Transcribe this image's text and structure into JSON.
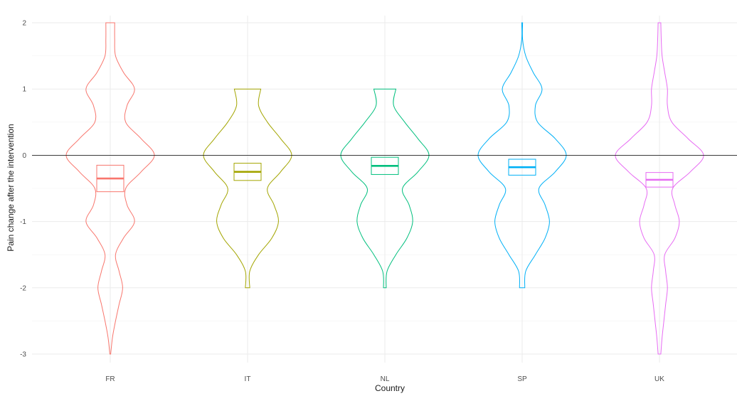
{
  "chart_data": {
    "type": "violin",
    "title": "",
    "xlabel": "Country",
    "ylabel": "Pain change after the intervention",
    "ylim": [
      -3,
      2
    ],
    "yticks": [
      "-3",
      "-2",
      "-1",
      "0",
      "1",
      "2"
    ],
    "grid": true,
    "legend": "none",
    "reference_line_y": 0,
    "categories": [
      "FR",
      "IT",
      "NL",
      "SP",
      "UK"
    ],
    "series": [
      {
        "category": "FR",
        "color": "#F8766D",
        "min": -3,
        "max": 2,
        "mean": -0.35,
        "ci_low": -0.55,
        "ci_high": -0.15,
        "density": [
          [
            -3,
            0.01
          ],
          [
            -2.75,
            0.05
          ],
          [
            -2.5,
            0.12
          ],
          [
            -2.25,
            0.2
          ],
          [
            -2,
            0.28
          ],
          [
            -1.75,
            0.2
          ],
          [
            -1.5,
            0.12
          ],
          [
            -1.25,
            0.3
          ],
          [
            -1,
            0.55
          ],
          [
            -0.75,
            0.38
          ],
          [
            -0.5,
            0.35
          ],
          [
            -0.25,
            0.7
          ],
          [
            0,
            1.0
          ],
          [
            0.25,
            0.7
          ],
          [
            0.5,
            0.35
          ],
          [
            0.75,
            0.38
          ],
          [
            1,
            0.55
          ],
          [
            1.25,
            0.3
          ],
          [
            1.5,
            0.12
          ],
          [
            1.75,
            0.1
          ],
          [
            2,
            0.1
          ]
        ]
      },
      {
        "category": "IT",
        "color": "#A3A500",
        "min": -2,
        "max": 1,
        "mean": -0.25,
        "ci_low": -0.38,
        "ci_high": -0.12,
        "density": [
          [
            -2,
            0.05
          ],
          [
            -1.75,
            0.05
          ],
          [
            -1.5,
            0.25
          ],
          [
            -1.25,
            0.55
          ],
          [
            -1,
            0.7
          ],
          [
            -0.75,
            0.6
          ],
          [
            -0.5,
            0.45
          ],
          [
            -0.25,
            0.75
          ],
          [
            0,
            1.0
          ],
          [
            0.25,
            0.75
          ],
          [
            0.5,
            0.45
          ],
          [
            0.75,
            0.25
          ],
          [
            1,
            0.3
          ]
        ]
      },
      {
        "category": "NL",
        "color": "#00BF7D",
        "min": -2,
        "max": 1,
        "mean": -0.16,
        "ci_low": -0.29,
        "ci_high": -0.03,
        "density": [
          [
            -2,
            0.03
          ],
          [
            -1.75,
            0.05
          ],
          [
            -1.5,
            0.25
          ],
          [
            -1.25,
            0.5
          ],
          [
            -1,
            0.63
          ],
          [
            -0.75,
            0.55
          ],
          [
            -0.5,
            0.4
          ],
          [
            -0.25,
            0.75
          ],
          [
            0,
            1.0
          ],
          [
            0.25,
            0.75
          ],
          [
            0.5,
            0.45
          ],
          [
            0.75,
            0.2
          ],
          [
            1,
            0.25
          ]
        ]
      },
      {
        "category": "SP",
        "color": "#00B0F6",
        "min": -2,
        "max": 2,
        "mean": -0.18,
        "ci_low": -0.3,
        "ci_high": -0.06,
        "density": [
          [
            -2,
            0.06
          ],
          [
            -1.75,
            0.08
          ],
          [
            -1.5,
            0.3
          ],
          [
            -1.25,
            0.52
          ],
          [
            -1,
            0.62
          ],
          [
            -0.75,
            0.52
          ],
          [
            -0.5,
            0.38
          ],
          [
            -0.25,
            0.75
          ],
          [
            0,
            1.0
          ],
          [
            0.25,
            0.75
          ],
          [
            0.5,
            0.35
          ],
          [
            0.75,
            0.3
          ],
          [
            1,
            0.45
          ],
          [
            1.25,
            0.25
          ],
          [
            1.5,
            0.08
          ],
          [
            1.75,
            0.01
          ],
          [
            2,
            0.01
          ]
        ]
      },
      {
        "category": "UK",
        "color": "#E76BF3",
        "min": -3,
        "max": 2,
        "mean": -0.37,
        "ci_low": -0.48,
        "ci_high": -0.26,
        "density": [
          [
            -3,
            0.03
          ],
          [
            -2.75,
            0.06
          ],
          [
            -2.5,
            0.1
          ],
          [
            -2.25,
            0.14
          ],
          [
            -2,
            0.18
          ],
          [
            -1.75,
            0.14
          ],
          [
            -1.5,
            0.12
          ],
          [
            -1.25,
            0.35
          ],
          [
            -1,
            0.45
          ],
          [
            -0.75,
            0.35
          ],
          [
            -0.5,
            0.3
          ],
          [
            -0.25,
            0.7
          ],
          [
            0,
            1.0
          ],
          [
            0.25,
            0.65
          ],
          [
            0.5,
            0.28
          ],
          [
            0.75,
            0.18
          ],
          [
            1,
            0.18
          ],
          [
            1.25,
            0.12
          ],
          [
            1.5,
            0.06
          ],
          [
            1.75,
            0.04
          ],
          [
            2,
            0.03
          ]
        ]
      }
    ]
  }
}
